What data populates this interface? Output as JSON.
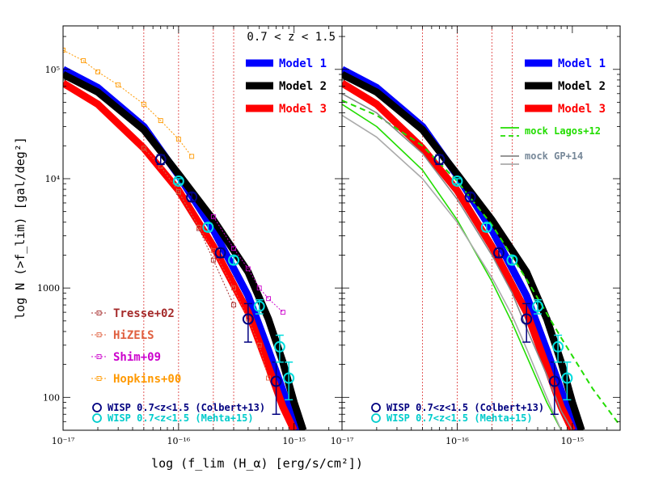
{
  "chart_data": {
    "type": "line",
    "title": "",
    "xlabel": "log (f_lim (H_α) [erg/s/cm²])",
    "ylabel": "log N (>f_lim) [gal/deg²]",
    "xscale": "log",
    "yscale": "log",
    "xlim": [
      1e-17,
      2.6e-15
    ],
    "ylim": [
      50,
      250000
    ],
    "x_tick_labels": [
      "10⁻¹⁷",
      "10⁻¹⁶",
      "10⁻¹⁵"
    ],
    "y_tick_labels": [
      "100",
      "1000",
      "10⁴",
      "10⁵"
    ],
    "vertical_lines_x": [
      5e-17,
      1e-16,
      2e-16,
      3e-16
    ],
    "panels": [
      {
        "name": "left",
        "annotation": "0.7 < z < 1.5",
        "legend_models": [
          "Model 1",
          "Model 2",
          "Model 3"
        ],
        "legend_data": [
          "Tresse+02",
          "HiZELS",
          "Shim+09",
          "Hopkins+00"
        ],
        "legend_wisp": [
          "WISP 0.7<z<1.5 (Colbert+13)",
          "WISP 0.7<z<1.5 (Mehta+15)"
        ],
        "series": [
          {
            "name": "Model 1",
            "color": "#0000ff",
            "x": [
              1e-17,
              2e-17,
              5e-17,
              1e-16,
              2e-16,
              4e-16,
              6e-16,
              8e-16,
              1e-15,
              1.1e-15
            ],
            "y": [
              100000,
              68000,
              30000,
              10700,
              3400,
              850,
              270,
              115,
              60,
              50
            ]
          },
          {
            "name": "Model 2",
            "color": "#000000",
            "x": [
              1e-17,
              2e-17,
              5e-17,
              1e-16,
              2e-16,
              4e-16,
              6e-16,
              8e-16,
              1e-15,
              1.2e-15
            ],
            "y": [
              90000,
              62000,
              28000,
              11000,
              4200,
              1400,
              520,
              210,
              90,
              50
            ]
          },
          {
            "name": "Model 3",
            "color": "#ff0000",
            "x": [
              1e-17,
              2e-17,
              5e-17,
              1e-16,
              2e-16,
              4e-16,
              6e-16,
              8e-16,
              1e-15
            ],
            "y": [
              75000,
              48000,
              19000,
              7800,
              2400,
              600,
              190,
              82,
              50
            ]
          },
          {
            "name": "Tresse+02",
            "color": "#a52a2a",
            "x": [
              5e-17,
              7e-17,
              1e-16,
              1.5e-16,
              2e-16,
              3e-16
            ],
            "y": [
              19000,
              13000,
              7500,
              3500,
              1800,
              700
            ]
          },
          {
            "name": "HiZELS",
            "color": "#e06040",
            "x": [
              5e-17,
              7e-17,
              1e-16,
              1.5e-16,
              2e-16,
              3e-16,
              4e-16,
              5e-16,
              6e-16
            ],
            "y": [
              19000,
              13000,
              7600,
              3600,
              2200,
              1000,
              520,
              300,
              150
            ]
          },
          {
            "name": "Shim+09",
            "color": "#cc00cc",
            "x": [
              2e-16,
              3e-16,
              4e-16,
              5e-16,
              6e-16,
              8e-16
            ],
            "y": [
              4500,
              2300,
              1500,
              1000,
              800,
              600
            ]
          },
          {
            "name": "Hopkins+00",
            "color": "#ff9900",
            "x": [
              1e-17,
              1.5e-17,
              2e-17,
              3e-17,
              5e-17,
              7e-17,
              1e-16,
              1.3e-16
            ],
            "y": [
              150000,
              120000,
              95000,
              72000,
              48000,
              34000,
              23000,
              16000
            ]
          }
        ],
        "wisp_colbert": {
          "x": [
            7e-17,
            1.3e-16,
            2.3e-16,
            4e-16,
            7e-16
          ],
          "y": [
            15000,
            6800,
            2100,
            520,
            140
          ],
          "err_low": [
            13500,
            6200,
            1900,
            320,
            70
          ],
          "err_high": [
            16500,
            7400,
            2300,
            720,
            210
          ]
        },
        "wisp_mehta": {
          "x": [
            1e-16,
            1.8e-16,
            3e-16,
            5e-16,
            7.5e-16,
            9e-16
          ],
          "y": [
            9500,
            3600,
            1800,
            680,
            290,
            150
          ],
          "err_low": [
            9000,
            3300,
            1650,
            580,
            210,
            95
          ],
          "err_high": [
            10000,
            3900,
            1950,
            780,
            370,
            210
          ]
        }
      },
      {
        "name": "right",
        "legend_models": [
          "Model 1",
          "Model 2",
          "Model 3"
        ],
        "legend_mocks": [
          "mock Lagos+12",
          "mock GP+14"
        ],
        "legend_wisp": [
          "WISP 0.7<z<1.5 (Colbert+13)",
          "WISP 0.7<z<1.5 (Mehta+15)"
        ],
        "series": [
          {
            "name": "Model 1",
            "color": "#0000ff",
            "x": [
              1e-17,
              2e-17,
              5e-17,
              1e-16,
              2e-16,
              4e-16,
              6e-16,
              8e-16,
              1e-15,
              1.1e-15
            ],
            "y": [
              100000,
              68000,
              30000,
              10700,
              3400,
              850,
              270,
              115,
              60,
              50
            ]
          },
          {
            "name": "Model 2",
            "color": "#000000",
            "x": [
              1e-17,
              2e-17,
              5e-17,
              1e-16,
              2e-16,
              4e-16,
              6e-16,
              8e-16,
              1e-15,
              1.2e-15
            ],
            "y": [
              90000,
              62000,
              28000,
              11000,
              4200,
              1400,
              520,
              210,
              90,
              50
            ]
          },
          {
            "name": "Model 3",
            "color": "#ff0000",
            "x": [
              1e-17,
              2e-17,
              5e-17,
              1e-16,
              2e-16,
              4e-16,
              6e-16,
              8e-16,
              1e-15
            ],
            "y": [
              75000,
              48000,
              19000,
              7800,
              2400,
              600,
              190,
              82,
              50
            ]
          },
          {
            "name": "mock Lagos+12 (solid)",
            "color": "#22dd00",
            "x": [
              1e-17,
              2e-17,
              5e-17,
              1e-16,
              2e-16,
              3e-16,
              4e-16,
              6e-16,
              8e-16
            ],
            "y": [
              48000,
              30000,
              12000,
              4200,
              1150,
              480,
              240,
              90,
              50
            ]
          },
          {
            "name": "mock Lagos+12 (dashed)",
            "color": "#22dd00",
            "x": [
              1e-17,
              2e-17,
              5e-17,
              1e-16,
              2e-16,
              4e-16,
              8e-16,
              1.5e-15,
              2.6e-15
            ],
            "y": [
              52000,
              38000,
              20000,
              9500,
              3800,
              1200,
              350,
              120,
              55
            ]
          },
          {
            "name": "mock GP+14 (grey)",
            "color": "#888888",
            "x": [
              1e-17,
              2e-17,
              5e-17,
              1e-16,
              2e-16,
              3e-16,
              4e-16,
              6e-16,
              8e-16,
              1e-15
            ],
            "y": [
              60000,
              40000,
              17000,
              6500,
              2000,
              900,
              430,
              160,
              75,
              50
            ]
          },
          {
            "name": "mock GP+14 (light grey)",
            "color": "#aaaaaa",
            "x": [
              1e-17,
              2e-17,
              5e-17,
              1e-16,
              2e-16,
              3e-16,
              4e-16,
              6e-16,
              8e-16
            ],
            "y": [
              38000,
              24000,
              10000,
              4000,
              1250,
              560,
              280,
              100,
              50
            ]
          }
        ],
        "wisp_colbert": {
          "x": [
            7e-17,
            1.3e-16,
            2.3e-16,
            4e-16,
            7e-16
          ],
          "y": [
            15000,
            6800,
            2100,
            520,
            140
          ],
          "err_low": [
            13500,
            6200,
            1900,
            320,
            70
          ],
          "err_high": [
            16500,
            7400,
            2300,
            720,
            210
          ]
        },
        "wisp_mehta": {
          "x": [
            1e-16,
            1.8e-16,
            3e-16,
            5e-16,
            7.5e-16,
            9e-16
          ],
          "y": [
            9500,
            3600,
            1800,
            680,
            290,
            150
          ],
          "err_low": [
            9000,
            3300,
            1650,
            580,
            210,
            95
          ],
          "err_high": [
            10000,
            3900,
            1950,
            780,
            370,
            210
          ]
        }
      }
    ]
  }
}
